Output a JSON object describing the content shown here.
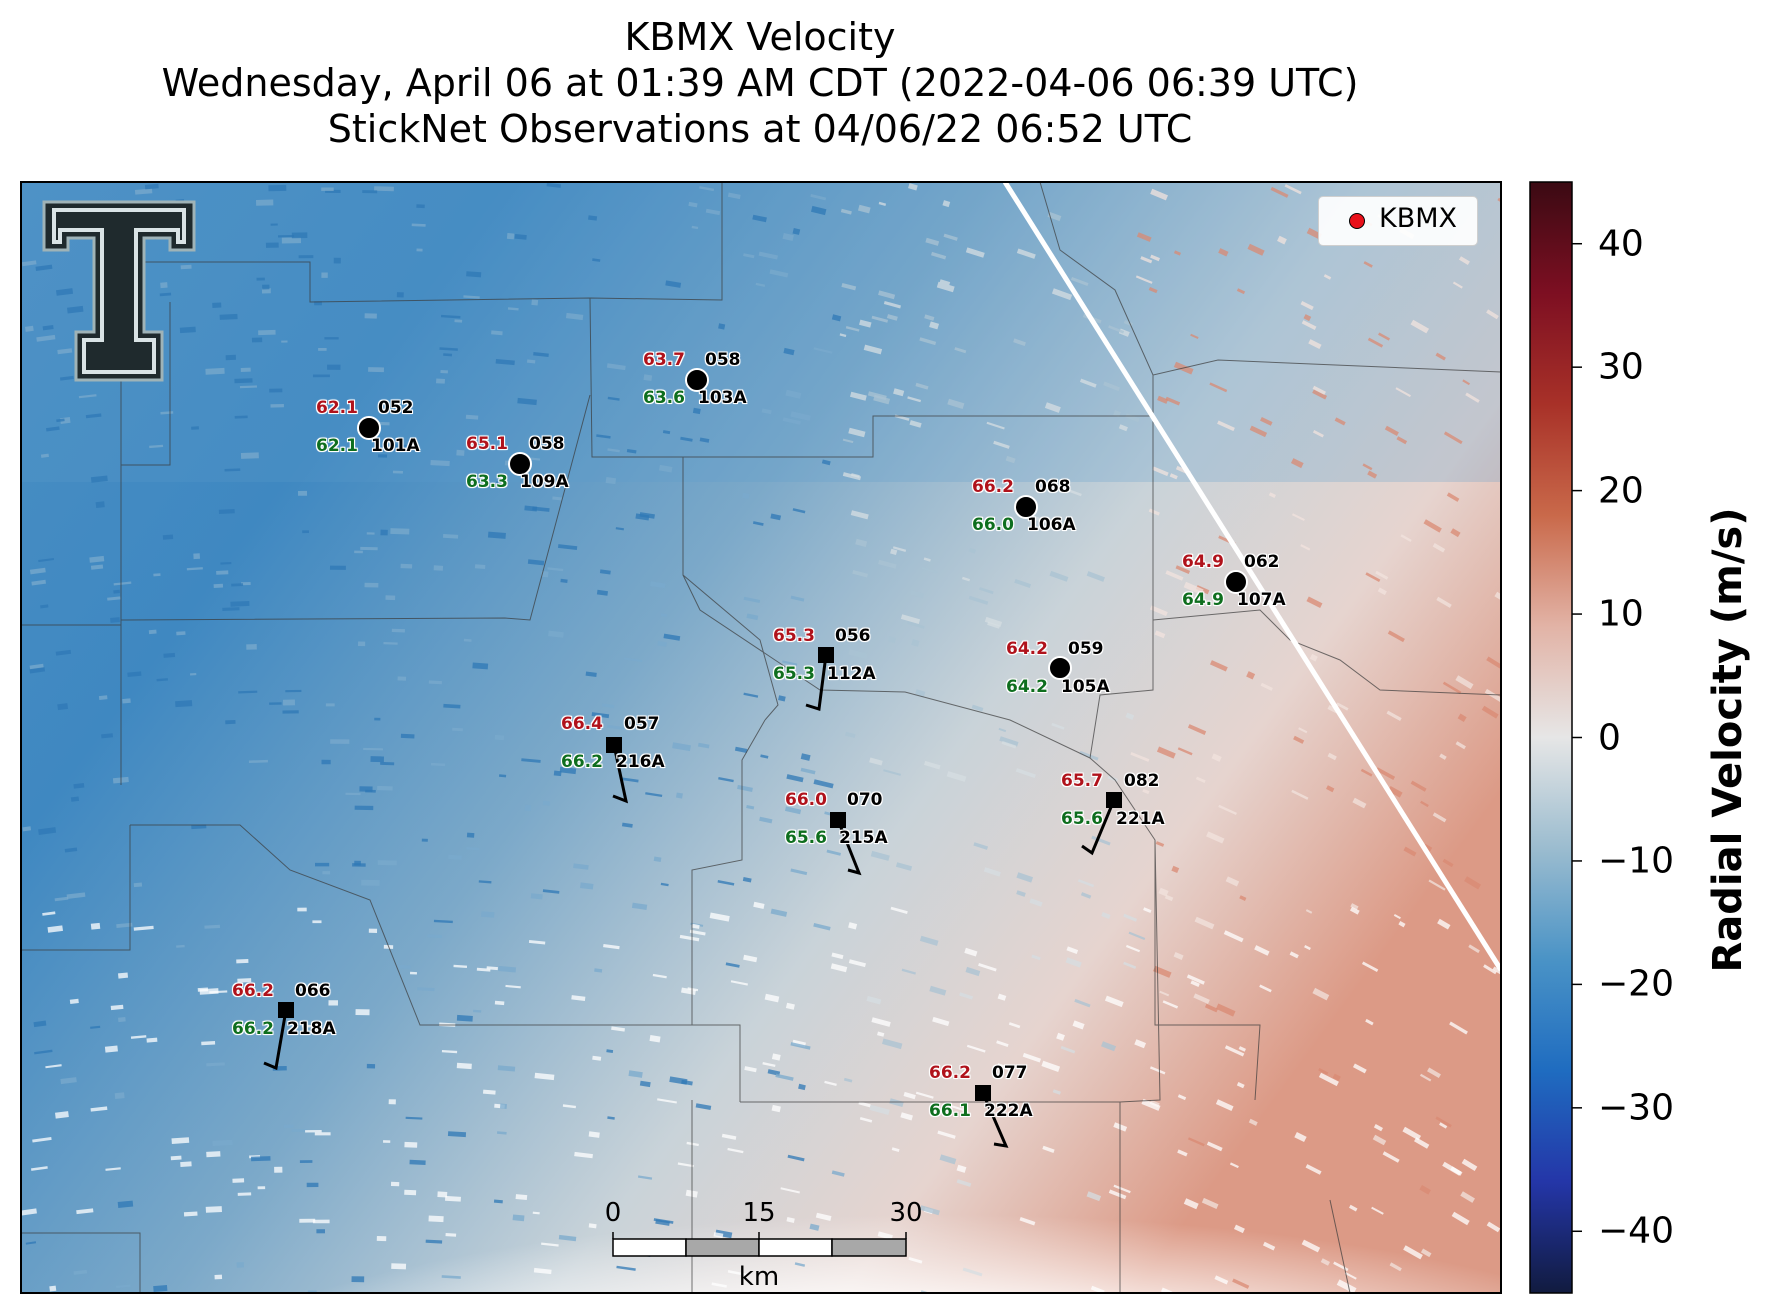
{
  "title": {
    "line1": "KBMX Velocity",
    "line2": "Wednesday, April 06 at 01:39 AM CDT (2022-04-06 06:39 UTC)",
    "line3": "StickNet Observations at 04/06/22 06:52 UTC"
  },
  "legend": {
    "label": "KBMX",
    "marker_color": "#e8101a"
  },
  "colorbar": {
    "label": "Radial Velocity (m/s)",
    "min": -45,
    "max": 45,
    "ticks": [
      "40",
      "30",
      "20",
      "10",
      "0",
      "−10",
      "−20",
      "−30",
      "−40"
    ],
    "tick_values": [
      40,
      30,
      20,
      10,
      0,
      -10,
      -20,
      -30,
      -40
    ],
    "colors": [
      "#111b3f",
      "#2436a8",
      "#1f6cc0",
      "#4a93c6",
      "#9bbccf",
      "#e6e6e6",
      "#e2b3a6",
      "#c9694a",
      "#a83128",
      "#7d0f22",
      "#3b0a13"
    ]
  },
  "scalebar": {
    "ticks": [
      "0",
      "15",
      "30"
    ],
    "unit": "km"
  },
  "logo": {
    "name": "texas-tech-double-t-logo"
  },
  "stations": [
    {
      "id": "101A",
      "temp": "62.1",
      "dew": "62.1",
      "pres": "052",
      "marker": "circle"
    },
    {
      "id": "109A",
      "temp": "65.1",
      "dew": "63.3",
      "pres": "058",
      "marker": "circle"
    },
    {
      "id": "103A",
      "temp": "63.7",
      "dew": "63.6",
      "pres": "058",
      "marker": "circle"
    },
    {
      "id": "106A",
      "temp": "66.2",
      "dew": "66.0",
      "pres": "068",
      "marker": "circle"
    },
    {
      "id": "107A",
      "temp": "64.9",
      "dew": "64.9",
      "pres": "062",
      "marker": "circle"
    },
    {
      "id": "112A",
      "temp": "65.3",
      "dew": "65.3",
      "pres": "056",
      "marker": "square"
    },
    {
      "id": "105A",
      "temp": "64.2",
      "dew": "64.2",
      "pres": "059",
      "marker": "circle"
    },
    {
      "id": "216A",
      "temp": "66.4",
      "dew": "66.2",
      "pres": "057",
      "marker": "square"
    },
    {
      "id": "215A",
      "temp": "66.0",
      "dew": "65.6",
      "pres": "070",
      "marker": "square"
    },
    {
      "id": "221A",
      "temp": "65.7",
      "dew": "65.6",
      "pres": "082",
      "marker": "square"
    },
    {
      "id": "218A",
      "temp": "66.2",
      "dew": "66.2",
      "pres": "066",
      "marker": "square"
    },
    {
      "id": "222A",
      "temp": "66.2",
      "dew": "66.1",
      "pres": "077",
      "marker": "square"
    }
  ]
}
